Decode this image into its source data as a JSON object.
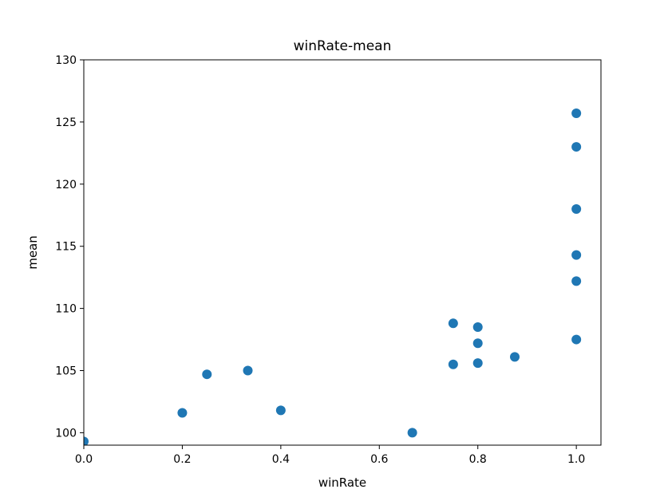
{
  "chart_data": {
    "type": "scatter",
    "title": "winRate-mean",
    "xlabel": "winRate",
    "ylabel": "mean",
    "xlim": [
      0.0,
      1.05
    ],
    "ylim": [
      99.0,
      130.0
    ],
    "xticks": [
      0.0,
      0.2,
      0.4,
      0.6,
      0.8,
      1.0
    ],
    "xtick_labels": [
      "0.0",
      "0.2",
      "0.4",
      "0.6",
      "0.8",
      "1.0"
    ],
    "yticks": [
      100,
      105,
      110,
      115,
      120,
      125,
      130
    ],
    "ytick_labels": [
      "100",
      "105",
      "110",
      "115",
      "120",
      "125",
      "130"
    ],
    "grid": false,
    "marker_color": "#1f77b4",
    "points": [
      {
        "x": 0.0,
        "y": 99.3
      },
      {
        "x": 0.2,
        "y": 101.6
      },
      {
        "x": 0.25,
        "y": 104.7
      },
      {
        "x": 0.333,
        "y": 105.0
      },
      {
        "x": 0.4,
        "y": 101.8
      },
      {
        "x": 0.667,
        "y": 100.0
      },
      {
        "x": 0.75,
        "y": 108.8
      },
      {
        "x": 0.75,
        "y": 105.5
      },
      {
        "x": 0.8,
        "y": 108.5
      },
      {
        "x": 0.8,
        "y": 107.2
      },
      {
        "x": 0.8,
        "y": 105.6
      },
      {
        "x": 0.875,
        "y": 106.1
      },
      {
        "x": 1.0,
        "y": 125.7
      },
      {
        "x": 1.0,
        "y": 123.0
      },
      {
        "x": 1.0,
        "y": 118.0
      },
      {
        "x": 1.0,
        "y": 114.3
      },
      {
        "x": 1.0,
        "y": 112.2
      },
      {
        "x": 1.0,
        "y": 107.5
      }
    ]
  }
}
